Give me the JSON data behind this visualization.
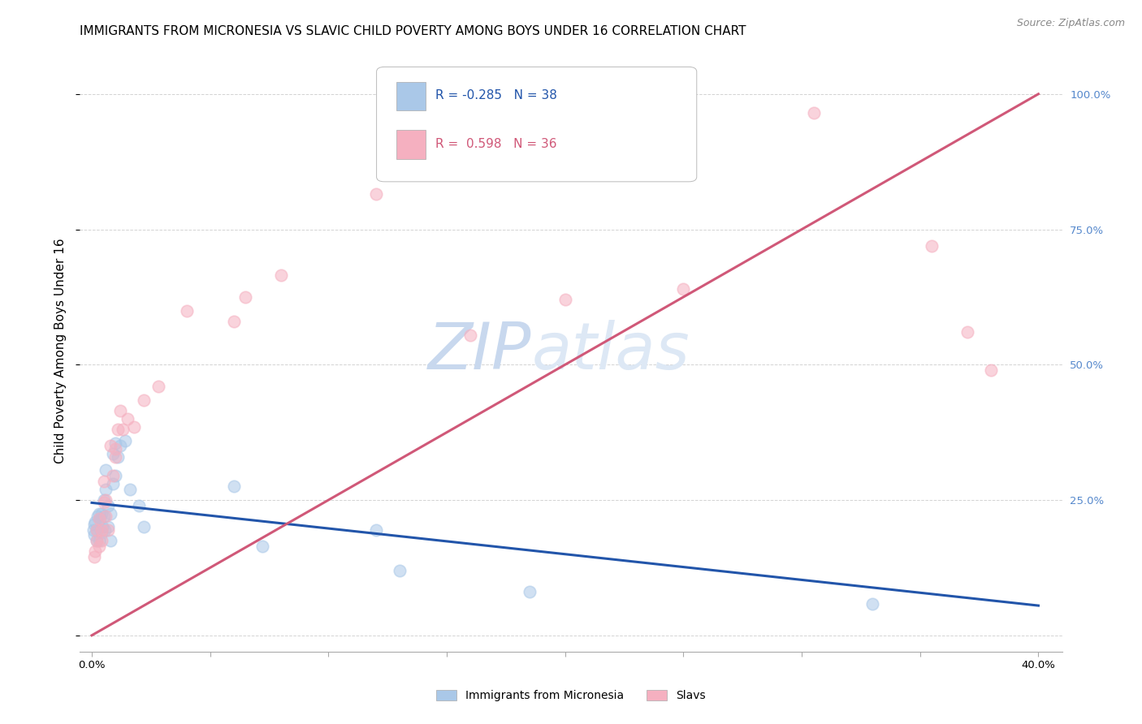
{
  "title": "IMMIGRANTS FROM MICRONESIA VS SLAVIC CHILD POVERTY AMONG BOYS UNDER 16 CORRELATION CHART",
  "source": "Source: ZipAtlas.com",
  "ylabel": "Child Poverty Among Boys Under 16",
  "yticks": [
    0.0,
    0.25,
    0.5,
    0.75,
    1.0
  ],
  "ytick_labels_right": [
    "",
    "25.0%",
    "50.0%",
    "75.0%",
    "100.0%"
  ],
  "xticks": [
    0.0,
    0.05,
    0.1,
    0.15,
    0.2,
    0.25,
    0.3,
    0.35,
    0.4
  ],
  "xtick_labels": [
    "0.0%",
    "",
    "",
    "",
    "",
    "",
    "",
    "",
    "40.0%"
  ],
  "xlim": [
    -0.005,
    0.41
  ],
  "ylim": [
    -0.03,
    1.08
  ],
  "watermark_zip": "ZIP",
  "watermark_atlas": "atlas",
  "blue_scatter_color": "#aac8e8",
  "pink_scatter_color": "#f5b0c0",
  "blue_line_color": "#2255aa",
  "pink_line_color": "#d05878",
  "blue_trendline": [
    0.0,
    0.4
  ],
  "blue_trendline_y": [
    0.245,
    0.055
  ],
  "pink_trendline": [
    0.0,
    0.4
  ],
  "pink_trendline_y": [
    0.0,
    1.0
  ],
  "micronesia_x": [
    0.0008,
    0.001,
    0.0012,
    0.0015,
    0.002,
    0.002,
    0.0025,
    0.003,
    0.003,
    0.0035,
    0.004,
    0.004,
    0.0045,
    0.005,
    0.005,
    0.0055,
    0.006,
    0.006,
    0.007,
    0.007,
    0.008,
    0.008,
    0.009,
    0.009,
    0.01,
    0.01,
    0.011,
    0.012,
    0.014,
    0.016,
    0.02,
    0.022,
    0.06,
    0.072,
    0.12,
    0.13,
    0.185,
    0.33
  ],
  "micronesia_y": [
    0.195,
    0.205,
    0.185,
    0.21,
    0.195,
    0.175,
    0.22,
    0.225,
    0.175,
    0.215,
    0.225,
    0.19,
    0.2,
    0.25,
    0.22,
    0.195,
    0.305,
    0.27,
    0.24,
    0.2,
    0.225,
    0.175,
    0.335,
    0.28,
    0.355,
    0.295,
    0.33,
    0.35,
    0.36,
    0.27,
    0.24,
    0.2,
    0.275,
    0.165,
    0.195,
    0.12,
    0.08,
    0.058
  ],
  "slavs_x": [
    0.001,
    0.0015,
    0.002,
    0.002,
    0.003,
    0.003,
    0.004,
    0.004,
    0.005,
    0.005,
    0.006,
    0.006,
    0.007,
    0.008,
    0.009,
    0.01,
    0.01,
    0.011,
    0.012,
    0.013,
    0.015,
    0.018,
    0.022,
    0.028,
    0.04,
    0.06,
    0.065,
    0.08,
    0.12,
    0.16,
    0.2,
    0.25,
    0.305,
    0.355,
    0.37,
    0.38
  ],
  "slavs_y": [
    0.145,
    0.155,
    0.175,
    0.195,
    0.165,
    0.215,
    0.175,
    0.195,
    0.285,
    0.245,
    0.25,
    0.22,
    0.195,
    0.35,
    0.295,
    0.33,
    0.345,
    0.38,
    0.415,
    0.38,
    0.4,
    0.385,
    0.435,
    0.46,
    0.6,
    0.58,
    0.625,
    0.665,
    0.815,
    0.555,
    0.62,
    0.64,
    0.965,
    0.72,
    0.56,
    0.49
  ],
  "scatter_size": 110,
  "scatter_alpha": 0.55,
  "title_fontsize": 11,
  "source_fontsize": 9,
  "ylabel_fontsize": 11,
  "tick_fontsize": 9.5,
  "legend_entry_fontsize": 11,
  "watermark_fontsize_zip": 58,
  "watermark_fontsize_atlas": 58,
  "watermark_color": "#c8d8ee",
  "right_tick_color": "#5588cc",
  "grid_color": "#cccccc",
  "legend_r1": "R = -0.285",
  "legend_n1": "N = 38",
  "legend_r2": "R =  0.598",
  "legend_n2": "N = 36"
}
